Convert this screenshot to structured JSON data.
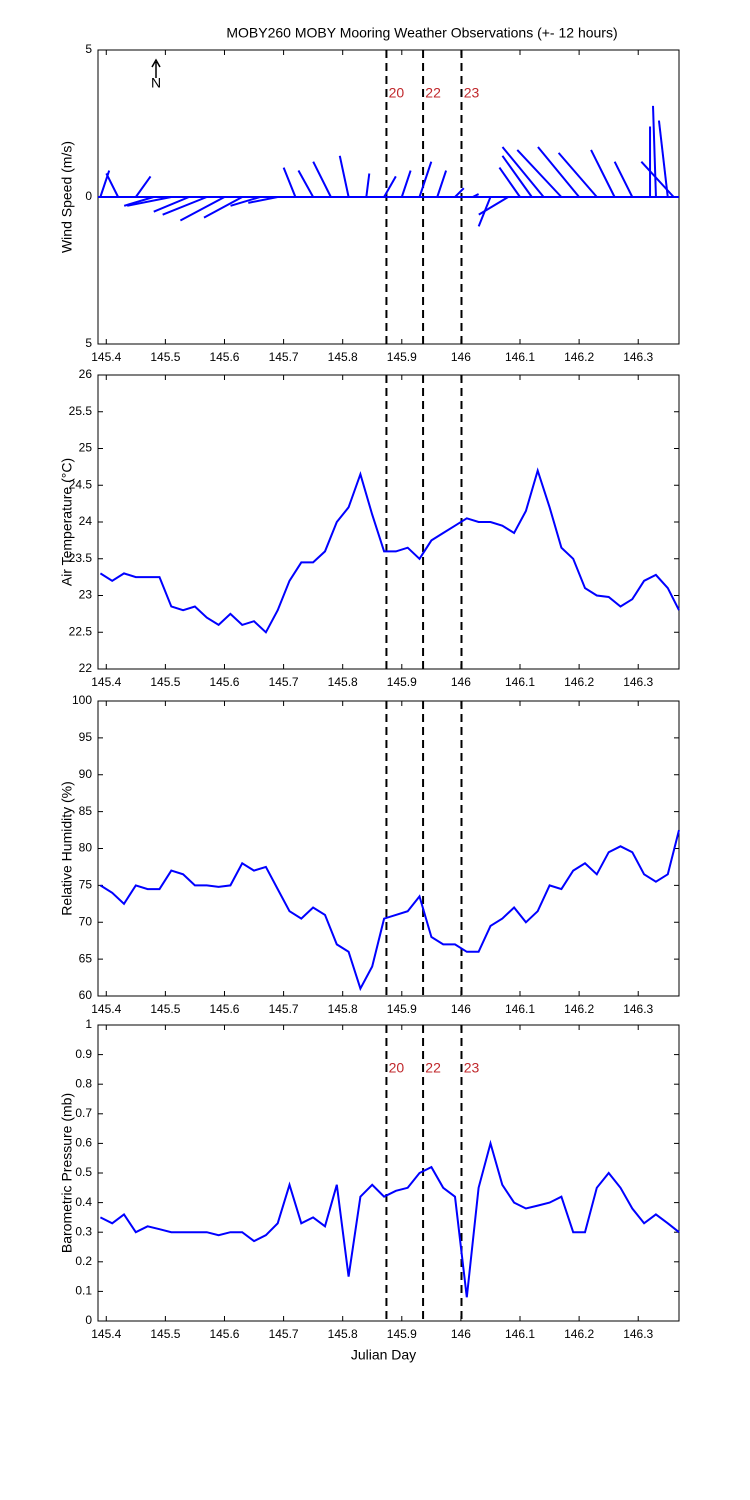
{
  "chart_data": [
    {
      "type": "quiver",
      "title": "MOBY260 MOBY Mooring Weather Observations (+- 12 hours)",
      "y_label": "Wind Speed (m/s)",
      "annotation": "N",
      "color": "#0000ff",
      "xlim": [
        145.386,
        146.369
      ],
      "xticks": [
        145.4,
        145.5,
        145.6,
        145.7,
        145.8,
        145.9,
        146,
        146.1,
        146.2,
        146.3
      ],
      "ylim": [
        -5,
        5
      ],
      "yticks": [
        {
          "value": -5,
          "label": "5"
        },
        0,
        {
          "value": 5,
          "label": "5"
        }
      ],
      "x": [
        145.39,
        145.42,
        145.45,
        145.48,
        145.51,
        145.54,
        145.57,
        145.6,
        145.63,
        145.66,
        145.69,
        145.72,
        145.75,
        145.78,
        145.81,
        145.84,
        145.87,
        145.9,
        145.93,
        145.96,
        145.99,
        146.02,
        146.05,
        146.08,
        146.1,
        146.12,
        146.14,
        146.17,
        146.2,
        146.23,
        146.26,
        146.29,
        146.32,
        146.33,
        146.35,
        146.36
      ],
      "u": [
        0.3,
        -0.4,
        0.5,
        -1.0,
        -1.5,
        -1.2,
        -1.5,
        -1.5,
        -1.3,
        -1.0,
        -1.0,
        -0.4,
        -0.5,
        -0.6,
        -0.3,
        0.1,
        0.4,
        0.3,
        0.4,
        0.3,
        0.3,
        0.2,
        -0.4,
        -1.0,
        -0.7,
        -1.0,
        -1.4,
        -1.5,
        -1.4,
        -1.3,
        -0.8,
        -0.6,
        0.0,
        -0.1,
        -0.3,
        -1.1
      ],
      "v": [
        0.9,
        0.8,
        0.7,
        -0.3,
        -0.3,
        -0.5,
        -0.6,
        -0.8,
        -0.7,
        -0.3,
        -0.2,
        1.0,
        0.9,
        1.2,
        1.4,
        0.8,
        0.7,
        0.9,
        1.2,
        0.9,
        0.3,
        0.1,
        -1.0,
        -0.6,
        1.0,
        1.4,
        1.7,
        1.6,
        1.7,
        1.5,
        1.6,
        1.2,
        2.4,
        3.1,
        2.6,
        1.2
      ],
      "vlines": [
        {
          "x": 145.874,
          "label": "20"
        },
        {
          "x": 145.936,
          "label": "22"
        },
        {
          "x": 146.001,
          "label": "23"
        }
      ]
    },
    {
      "type": "line",
      "y_label": "Air Temperature (°C)",
      "color": "#0000ff",
      "xlim": [
        145.386,
        146.369
      ],
      "xticks": [
        145.4,
        145.5,
        145.6,
        145.7,
        145.8,
        145.9,
        146,
        146.1,
        146.2,
        146.3
      ],
      "ylim": [
        22,
        26
      ],
      "yticks": [
        22,
        22.5,
        23,
        23.5,
        24,
        24.5,
        25,
        25.5,
        26
      ],
      "x": [
        145.39,
        145.41,
        145.43,
        145.45,
        145.47,
        145.49,
        145.51,
        145.53,
        145.55,
        145.57,
        145.59,
        145.61,
        145.63,
        145.65,
        145.67,
        145.69,
        145.71,
        145.73,
        145.75,
        145.77,
        145.79,
        145.81,
        145.83,
        145.85,
        145.87,
        145.89,
        145.91,
        145.93,
        145.95,
        145.97,
        145.99,
        146.01,
        146.03,
        146.05,
        146.07,
        146.09,
        146.11,
        146.13,
        146.15,
        146.17,
        146.19,
        146.21,
        146.23,
        146.25,
        146.27,
        146.29,
        146.31,
        146.33,
        146.35,
        146.369
      ],
      "values": [
        23.3,
        23.2,
        23.3,
        23.25,
        23.25,
        23.25,
        22.85,
        22.8,
        22.85,
        22.7,
        22.6,
        22.75,
        22.6,
        22.65,
        22.5,
        22.8,
        23.2,
        23.45,
        23.45,
        23.6,
        24.0,
        24.2,
        24.65,
        24.1,
        23.6,
        23.6,
        23.65,
        23.5,
        23.75,
        23.85,
        23.95,
        24.05,
        24.0,
        24.0,
        23.95,
        23.85,
        24.15,
        24.7,
        24.2,
        23.65,
        23.5,
        23.1,
        23.0,
        22.98,
        22.85,
        22.95,
        23.2,
        23.28,
        23.1,
        22.8
      ],
      "vlines": [
        145.874,
        145.936,
        146.001
      ]
    },
    {
      "type": "line",
      "y_label": "Relative Humidity (%)",
      "color": "#0000ff",
      "xlim": [
        145.386,
        146.369
      ],
      "xticks": [
        145.4,
        145.5,
        145.6,
        145.7,
        145.8,
        145.9,
        146,
        146.1,
        146.2,
        146.3
      ],
      "ylim": [
        60,
        100
      ],
      "yticks": [
        60,
        65,
        70,
        75,
        80,
        85,
        90,
        95,
        100
      ],
      "x": [
        145.39,
        145.41,
        145.43,
        145.45,
        145.47,
        145.49,
        145.51,
        145.53,
        145.55,
        145.57,
        145.59,
        145.61,
        145.63,
        145.65,
        145.67,
        145.69,
        145.71,
        145.73,
        145.75,
        145.77,
        145.79,
        145.81,
        145.83,
        145.85,
        145.87,
        145.89,
        145.91,
        145.93,
        145.95,
        145.97,
        145.99,
        146.01,
        146.03,
        146.05,
        146.07,
        146.09,
        146.11,
        146.13,
        146.15,
        146.17,
        146.19,
        146.21,
        146.23,
        146.25,
        146.27,
        146.29,
        146.31,
        146.33,
        146.35,
        146.369
      ],
      "values": [
        75,
        74,
        72.5,
        75,
        74.5,
        74.5,
        77,
        76.5,
        75,
        75,
        74.8,
        75,
        78,
        77,
        77.5,
        74.5,
        71.5,
        70.5,
        72,
        71,
        67,
        66,
        61,
        64,
        70.5,
        71,
        71.5,
        73.5,
        68,
        67,
        67,
        66,
        66,
        69.5,
        70.5,
        72,
        70,
        71.5,
        75,
        74.5,
        77,
        78,
        76.5,
        79.5,
        80.3,
        79.5,
        76.5,
        75.5,
        76.5,
        82.5
      ],
      "vlines": [
        145.874,
        145.936,
        146.001
      ]
    },
    {
      "type": "line",
      "y_label": "Barometric Pressure (mb)",
      "x_label": "Julian Day",
      "color": "#0000ff",
      "xlim": [
        145.386,
        146.369
      ],
      "xticks": [
        145.4,
        145.5,
        145.6,
        145.7,
        145.8,
        145.9,
        146,
        146.1,
        146.2,
        146.3
      ],
      "ylim": [
        0,
        1
      ],
      "yticks": [
        0,
        0.1,
        0.2,
        0.3,
        0.4,
        0.5,
        0.6,
        0.7,
        0.8,
        0.9,
        1
      ],
      "x": [
        145.39,
        145.41,
        145.43,
        145.45,
        145.47,
        145.49,
        145.51,
        145.53,
        145.55,
        145.57,
        145.59,
        145.61,
        145.63,
        145.65,
        145.67,
        145.69,
        145.71,
        145.73,
        145.75,
        145.77,
        145.79,
        145.81,
        145.83,
        145.85,
        145.87,
        145.89,
        145.91,
        145.93,
        145.95,
        145.97,
        145.99,
        146.01,
        146.03,
        146.05,
        146.07,
        146.09,
        146.11,
        146.13,
        146.15,
        146.17,
        146.19,
        146.21,
        146.23,
        146.25,
        146.27,
        146.29,
        146.31,
        146.33,
        146.35,
        146.369
      ],
      "values": [
        0.35,
        0.33,
        0.36,
        0.3,
        0.32,
        0.31,
        0.3,
        0.3,
        0.3,
        0.3,
        0.29,
        0.3,
        0.3,
        0.27,
        0.29,
        0.33,
        0.46,
        0.33,
        0.35,
        0.32,
        0.46,
        0.15,
        0.42,
        0.46,
        0.42,
        0.44,
        0.45,
        0.5,
        0.52,
        0.45,
        0.42,
        0.08,
        0.45,
        0.6,
        0.46,
        0.4,
        0.38,
        0.39,
        0.4,
        0.42,
        0.3,
        0.3,
        0.45,
        0.5,
        0.45,
        0.38,
        0.33,
        0.36,
        0.33,
        0.3
      ],
      "vlines": [
        {
          "x": 145.874,
          "label": "20"
        },
        {
          "x": 145.936,
          "label": "22"
        },
        {
          "x": 146.001,
          "label": "23"
        }
      ]
    }
  ]
}
